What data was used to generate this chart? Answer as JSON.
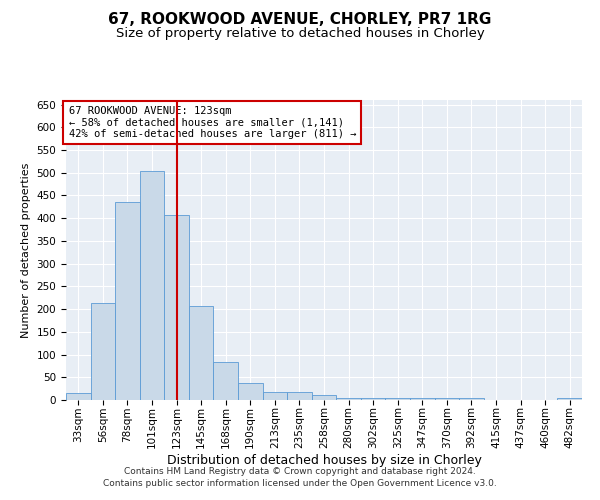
{
  "title_line1": "67, ROOKWOOD AVENUE, CHORLEY, PR7 1RG",
  "title_line2": "Size of property relative to detached houses in Chorley",
  "xlabel": "Distribution of detached houses by size in Chorley",
  "ylabel": "Number of detached properties",
  "footer_line1": "Contains HM Land Registry data © Crown copyright and database right 2024.",
  "footer_line2": "Contains public sector information licensed under the Open Government Licence v3.0.",
  "annotation_line1": "67 ROOKWOOD AVENUE: 123sqm",
  "annotation_line2": "← 58% of detached houses are smaller (1,141)",
  "annotation_line3": "42% of semi-detached houses are larger (811) →",
  "bar_color": "#c9d9e8",
  "bar_edge_color": "#5b9bd5",
  "highlight_color": "#cc0000",
  "background_color": "#e8eef5",
  "categories": [
    "33sqm",
    "56sqm",
    "78sqm",
    "101sqm",
    "123sqm",
    "145sqm",
    "168sqm",
    "190sqm",
    "213sqm",
    "235sqm",
    "258sqm",
    "280sqm",
    "302sqm",
    "325sqm",
    "347sqm",
    "370sqm",
    "392sqm",
    "415sqm",
    "437sqm",
    "460sqm",
    "482sqm"
  ],
  "values": [
    15,
    213,
    435,
    503,
    408,
    206,
    83,
    38,
    18,
    17,
    10,
    5,
    5,
    5,
    5,
    5,
    5,
    1,
    1,
    1,
    5
  ],
  "ylim": [
    0,
    660
  ],
  "yticks": [
    0,
    50,
    100,
    150,
    200,
    250,
    300,
    350,
    400,
    450,
    500,
    550,
    600,
    650
  ],
  "highlight_bar_index": 4,
  "title_fontsize": 11,
  "subtitle_fontsize": 9.5,
  "xlabel_fontsize": 9,
  "ylabel_fontsize": 8,
  "tick_fontsize": 7.5,
  "annotation_fontsize": 7.5,
  "footer_fontsize": 6.5
}
